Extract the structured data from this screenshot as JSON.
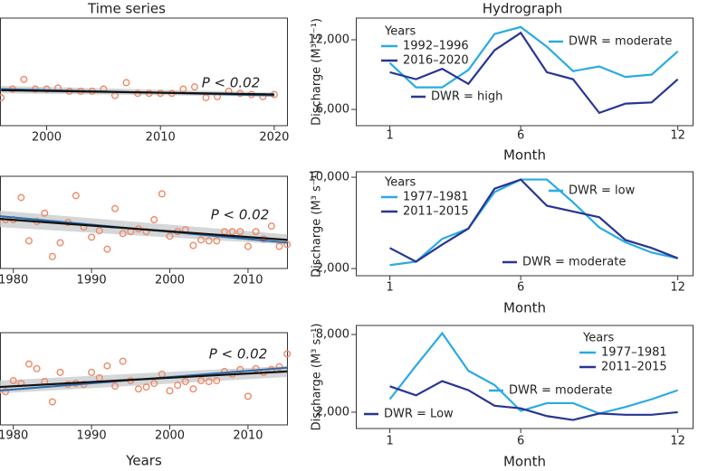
{
  "chart_data": [
    {
      "type": "scatter",
      "title": "Time series",
      "annotation": "P < 0.02",
      "marker_color": "#ee8a68",
      "x": [
        1996,
        1997,
        1998,
        1999,
        2000,
        2001,
        2002,
        2003,
        2004,
        2005,
        2006,
        2007,
        2008,
        2009,
        2010,
        2011,
        2012,
        2013,
        2014,
        2015,
        2016,
        2017,
        2018,
        2019,
        2020
      ],
      "values": [
        26,
        34,
        43,
        34,
        34,
        35,
        32,
        32,
        32,
        34,
        28,
        40,
        30,
        30,
        30,
        30,
        34,
        36,
        26,
        27,
        32,
        30,
        29,
        27,
        29
      ],
      "xlim": [
        1995.9,
        2021.2
      ],
      "xticks": [
        2000,
        2010,
        2020
      ],
      "ylim": [
        0,
        100
      ],
      "band": {
        "color": "#c9cccd",
        "x": [
          1996,
          2020
        ],
        "low": [
          30,
          27
        ],
        "high": [
          37,
          31
        ]
      },
      "trend_lines": [
        {
          "color": "#2b6cb0",
          "x": [
            1996,
            2020
          ],
          "values": [
            34,
            28
          ]
        },
        {
          "color": "#111111",
          "x": [
            1996,
            2020
          ],
          "values": [
            33,
            29
          ]
        }
      ]
    },
    {
      "type": "scatter",
      "annotation": "P < 0.02",
      "marker_color": "#ee8a68",
      "x": [
        1978,
        1979,
        1980,
        1981,
        1982,
        1983,
        1984,
        1985,
        1986,
        1987,
        1988,
        1989,
        1990,
        1991,
        1992,
        1993,
        1994,
        1995,
        1996,
        1997,
        1998,
        1999,
        2000,
        2001,
        2002,
        2003,
        2004,
        2005,
        2006,
        2007,
        2008,
        2009,
        2010,
        2011,
        2012,
        2013,
        2014,
        2015
      ],
      "values": [
        54,
        53,
        53,
        77,
        30,
        51,
        60,
        13,
        28,
        50,
        79,
        45,
        34,
        41,
        21,
        65,
        38,
        40,
        43,
        40,
        53,
        81,
        35,
        40,
        42,
        25,
        31,
        30,
        30,
        40,
        40,
        40,
        24,
        40,
        32,
        46,
        24,
        26
      ],
      "xlim": [
        1978.3,
        2015.1
      ],
      "xticks": [
        1980,
        1990,
        2000,
        2010
      ],
      "ylim": [
        0,
        100
      ],
      "band": {
        "color": "#c9cccd",
        "x": [
          1978,
          2015
        ],
        "low": [
          45,
          26
        ],
        "high": [
          63,
          37
        ]
      },
      "trend_lines": [
        {
          "color": "#2b6cb0",
          "x": [
            1978,
            2015
          ],
          "values": [
            57,
            28
          ]
        },
        {
          "color": "#111111",
          "x": [
            1978,
            2015
          ],
          "values": [
            54,
            31
          ]
        }
      ]
    },
    {
      "type": "scatter",
      "annotation": "P < 0.02",
      "xlabel": "Years",
      "marker_color": "#ee8a68",
      "x": [
        1978,
        1979,
        1980,
        1981,
        1982,
        1983,
        1984,
        1985,
        1986,
        1987,
        1988,
        1989,
        1990,
        1991,
        1992,
        1993,
        1994,
        1995,
        1996,
        1997,
        1998,
        1999,
        2000,
        2001,
        2002,
        2003,
        2004,
        2005,
        2006,
        2007,
        2008,
        2009,
        2010,
        2011,
        2012,
        2013,
        2014,
        2015
      ],
      "values": [
        37,
        36,
        48,
        45,
        66,
        61,
        47,
        25,
        57,
        44,
        45,
        44,
        57,
        51,
        64,
        42,
        69,
        48,
        39,
        41,
        45,
        55,
        37,
        43,
        47,
        39,
        48,
        47,
        48,
        58,
        55,
        60,
        31,
        61,
        57,
        60,
        63,
        77
      ],
      "xlim": [
        1978.3,
        2015.1
      ],
      "xticks": [
        1980,
        1990,
        2000,
        2010
      ],
      "ylim": [
        0,
        100
      ],
      "band": {
        "color": "#c9cccd",
        "x": [
          1978,
          2015
        ],
        "low": [
          34,
          52
        ],
        "high": [
          48,
          64
        ]
      },
      "trend_lines": [
        {
          "color": "#2b6cb0",
          "x": [
            1978,
            2015
          ],
          "values": [
            37,
            62
          ]
        },
        {
          "color": "#111111",
          "x": [
            1978,
            2015
          ],
          "values": [
            41,
            58
          ]
        }
      ]
    },
    {
      "type": "line",
      "title": "Hydrograph",
      "xlabel": "Month",
      "ylabel": "Discharge (M³ s⁻¹)",
      "legend_title": "Years",
      "x": [
        1,
        2,
        3,
        4,
        5,
        6,
        7,
        8,
        9,
        10,
        11,
        12
      ],
      "series": [
        {
          "name": "1992–1996",
          "color": "#29abe2",
          "values": [
            10000,
            7900,
            7900,
            9400,
            12500,
            13100,
            11400,
            9300,
            9700,
            8800,
            9000,
            11000
          ]
        },
        {
          "name": "2016–2020",
          "color": "#283593",
          "values": [
            9200,
            8600,
            9500,
            8200,
            11100,
            12600,
            9200,
            8600,
            5700,
            6500,
            6600,
            8600
          ]
        }
      ],
      "annotations": [
        {
          "text": "DWR = moderate",
          "color": "#29abe2"
        },
        {
          "text": "DWR = high",
          "color": "#283593"
        }
      ],
      "xlim": [
        -0.3,
        12.6
      ],
      "xticks": [
        1,
        6,
        12
      ],
      "ylim": [
        4600,
        13870
      ],
      "yticks": [
        {
          "value": 6000,
          "label": "6,000"
        },
        {
          "value": 12000,
          "label": "12,000"
        }
      ]
    },
    {
      "type": "line",
      "xlabel": "Month",
      "ylabel": "Discharge (M³ s⁻¹)",
      "legend_title": "Years",
      "x": [
        1,
        2,
        3,
        4,
        5,
        6,
        7,
        8,
        9,
        10,
        11,
        12
      ],
      "series": [
        {
          "name": "1977–1981",
          "color": "#29abe2",
          "values": [
            2300,
            2600,
            4600,
            5500,
            8700,
            9800,
            9800,
            7800,
            5600,
            4300,
            3400,
            2900
          ]
        },
        {
          "name": "2011–2015",
          "color": "#283593",
          "values": [
            3800,
            2600,
            4100,
            5500,
            9000,
            9800,
            7500,
            7000,
            6500,
            4500,
            3800,
            2900
          ]
        }
      ],
      "annotations": [
        {
          "text": "DWR = low",
          "color": "#29abe2"
        },
        {
          "text": "DWR = moderate",
          "color": "#283593"
        }
      ],
      "xlim": [
        -0.3,
        12.6
      ],
      "xticks": [
        1,
        6,
        12
      ],
      "ylim": [
        1370,
        10480
      ],
      "yticks": [
        {
          "value": 2000,
          "label": "2,000"
        },
        {
          "value": 10000,
          "label": "10,000"
        }
      ]
    },
    {
      "type": "line",
      "xlabel": "Month",
      "ylabel": "Discharge (M³ s⁻¹)",
      "legend_title": "Years",
      "x": [
        1,
        2,
        3,
        4,
        5,
        6,
        7,
        8,
        9,
        10,
        11,
        12
      ],
      "series": [
        {
          "name": "1977–1981",
          "color": "#29abe2",
          "values": [
            3000,
            5600,
            8100,
            5200,
            4100,
            2100,
            2700,
            2700,
            1900,
            2400,
            3000,
            3700
          ]
        },
        {
          "name": "2011–2015",
          "color": "#283593",
          "values": [
            4000,
            3300,
            4400,
            3700,
            2500,
            2300,
            1700,
            1400,
            1900,
            1800,
            1800,
            2000
          ]
        }
      ],
      "annotations": [
        {
          "text": "DWR = moderate",
          "color": "#29abe2"
        },
        {
          "text": "DWR = Low",
          "color": "#283593"
        }
      ],
      "xlim": [
        -0.3,
        12.6
      ],
      "xticks": [
        1,
        6,
        12
      ],
      "ylim": [
        740,
        8700
      ],
      "yticks": [
        {
          "value": 2000,
          "label": "2,000"
        },
        {
          "value": 8000,
          "label": "8,000"
        }
      ]
    }
  ]
}
